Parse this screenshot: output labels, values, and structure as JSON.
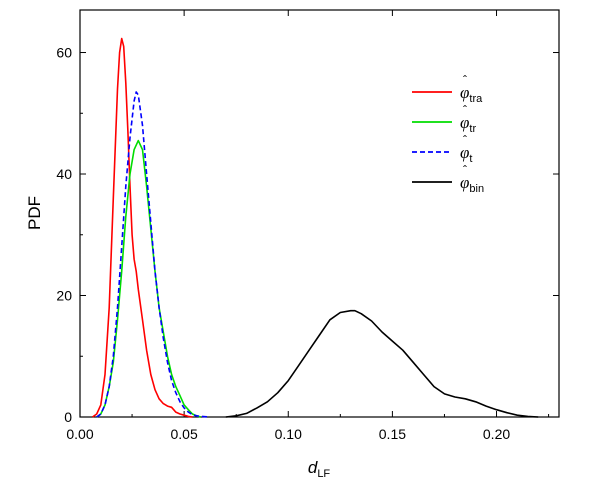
{
  "chart_data": {
    "type": "line",
    "title": "",
    "xlabel": {
      "main": "d",
      "sub": "LF"
    },
    "ylabel": "PDF",
    "xlim": [
      0.0,
      0.23
    ],
    "ylim": [
      0,
      67
    ],
    "xticks": [
      0.0,
      0.05,
      0.1,
      0.15,
      0.2
    ],
    "xtick_labels": [
      "0.00",
      "0.05",
      "0.10",
      "0.15",
      "0.20"
    ],
    "yticks": [
      0,
      20,
      40,
      60
    ],
    "ytick_labels": [
      "0",
      "20",
      "40",
      "60"
    ],
    "grid": false,
    "legend_position": "top-right",
    "series": [
      {
        "name": "φ̂ tra",
        "legend_main": "φ",
        "legend_sub": "tra",
        "color": "#ff0000",
        "dash": "solid",
        "x": [
          0.006,
          0.008,
          0.01,
          0.012,
          0.014,
          0.016,
          0.018,
          0.019,
          0.02,
          0.021,
          0.022,
          0.023,
          0.024,
          0.025,
          0.026,
          0.027,
          0.028,
          0.03,
          0.032,
          0.034,
          0.036,
          0.038,
          0.04,
          0.042,
          0.044,
          0.045,
          0.046,
          0.048,
          0.05,
          0.052,
          0.054
        ],
        "y": [
          0,
          0.5,
          2,
          7,
          18,
          36,
          54,
          60,
          62.3,
          61,
          55,
          47,
          38,
          30,
          26,
          24,
          21,
          16,
          11,
          7,
          4.5,
          3,
          2.2,
          1.8,
          1.6,
          1.2,
          0.8,
          0.5,
          0.3,
          0.1,
          0
        ]
      },
      {
        "name": "φ̂ tr",
        "legend_main": "φ",
        "legend_sub": "tr",
        "color": "#00dd00",
        "dash": "solid",
        "x": [
          0.008,
          0.01,
          0.012,
          0.014,
          0.016,
          0.018,
          0.02,
          0.022,
          0.024,
          0.026,
          0.028,
          0.03,
          0.032,
          0.034,
          0.036,
          0.038,
          0.04,
          0.042,
          0.044,
          0.046,
          0.048,
          0.05,
          0.052,
          0.054,
          0.056,
          0.058
        ],
        "y": [
          0,
          0.5,
          2,
          5,
          9,
          16,
          24,
          33,
          40,
          44,
          45.5,
          44,
          38,
          31,
          24,
          18,
          14,
          10,
          7,
          5,
          3.5,
          2,
          1.2,
          0.5,
          0.2,
          0
        ]
      },
      {
        "name": "φ̂ t",
        "legend_main": "φ",
        "legend_sub": "t",
        "color": "#0000ff",
        "dash": "dashed",
        "x": [
          0.008,
          0.01,
          0.012,
          0.014,
          0.016,
          0.018,
          0.02,
          0.022,
          0.024,
          0.026,
          0.027,
          0.028,
          0.03,
          0.032,
          0.034,
          0.036,
          0.038,
          0.04,
          0.042,
          0.044,
          0.046,
          0.048,
          0.05,
          0.052,
          0.054,
          0.056,
          0.058,
          0.06,
          0.062
        ],
        "y": [
          0,
          0.5,
          2,
          5,
          10,
          18,
          28,
          38,
          46,
          52,
          53.5,
          53,
          48,
          40,
          32,
          24,
          18,
          13,
          9,
          6,
          4,
          2.5,
          1.5,
          0.8,
          0.4,
          0.2,
          0.1,
          0.05,
          0
        ]
      },
      {
        "name": "φ̂ bin",
        "legend_main": "φ",
        "legend_sub": "bin",
        "color": "#000000",
        "dash": "solid",
        "x": [
          0.07,
          0.075,
          0.08,
          0.085,
          0.09,
          0.095,
          0.1,
          0.105,
          0.11,
          0.115,
          0.12,
          0.125,
          0.13,
          0.132,
          0.135,
          0.14,
          0.145,
          0.15,
          0.155,
          0.16,
          0.165,
          0.17,
          0.175,
          0.18,
          0.185,
          0.19,
          0.195,
          0.2,
          0.205,
          0.21,
          0.215,
          0.22
        ],
        "y": [
          0,
          0.2,
          0.6,
          1.5,
          2.5,
          4,
          6,
          8.5,
          11,
          13.5,
          16,
          17.2,
          17.5,
          17.5,
          17,
          15.8,
          14,
          12.5,
          11,
          9,
          7,
          5,
          3.8,
          3.3,
          3,
          2.5,
          1.8,
          1.2,
          0.7,
          0.3,
          0.1,
          0
        ]
      }
    ]
  }
}
